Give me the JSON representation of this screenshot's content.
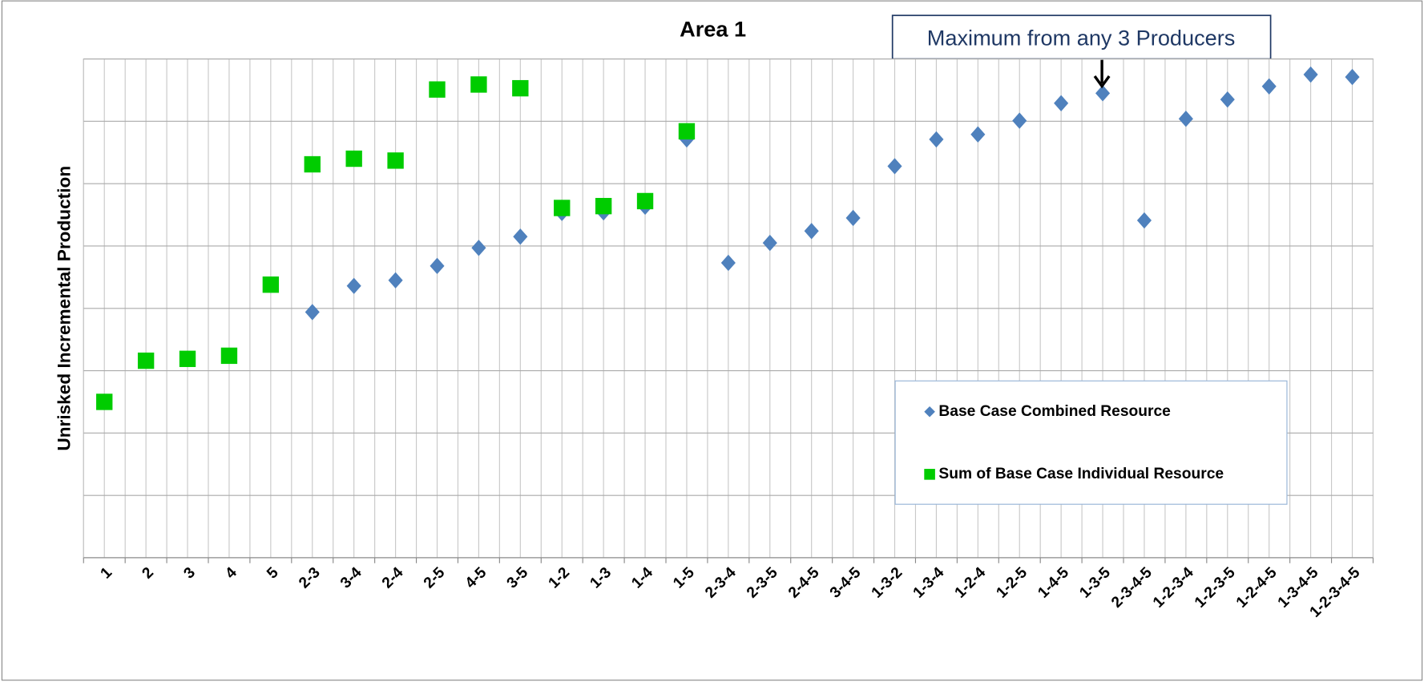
{
  "chart_data": {
    "type": "scatter",
    "title": "Area 1",
    "y_label": "Unrisked Incremental Production",
    "annotation": "Maximum from any 3 Producers",
    "categories": [
      "1",
      "2",
      "3",
      "4",
      "5",
      "2-3",
      "3-4",
      "2-4",
      "2-5",
      "4-5",
      "3-5",
      "1-2",
      "1-3",
      "1-4",
      "1-5",
      "2-3-4",
      "2-3-5",
      "2-4-5",
      "3-4-5",
      "1-3-2",
      "1-3-4",
      "1-2-4",
      "1-2-5",
      "1-4-5",
      "1-3-5",
      "2-3-4-5",
      "1-2-3-4",
      "1-2-3-5",
      "1-2-4-5",
      "1-3-4-5",
      "1-2-3-4-5"
    ],
    "series": [
      {
        "name": "Base Case Combined Resource",
        "color": "#4f81bd",
        "marker": "diamond",
        "values": [
          2.5,
          3.16,
          3.19,
          3.24,
          4.38,
          3.94,
          4.36,
          4.45,
          4.68,
          4.97,
          5.15,
          5.53,
          5.54,
          5.63,
          6.71,
          4.73,
          5.05,
          5.24,
          5.45,
          6.28,
          6.71,
          6.79,
          7.01,
          7.29,
          7.45,
          5.41,
          7.04,
          7.35,
          7.56,
          7.75,
          7.71
        ]
      },
      {
        "name": "Sum of Base Case Individual Resource",
        "color": "#00cc00",
        "marker": "square",
        "values": [
          2.5,
          3.16,
          3.19,
          3.24,
          4.38,
          6.31,
          6.4,
          6.37,
          7.51,
          7.59,
          7.53,
          5.61,
          5.64,
          5.72,
          6.84,
          null,
          null,
          null,
          null,
          null,
          null,
          null,
          null,
          null,
          null,
          null,
          null,
          null,
          null,
          null,
          null
        ]
      }
    ],
    "ylim": [
      0,
      8
    ],
    "yticks": [
      0,
      1,
      2,
      3,
      4,
      5,
      6,
      7,
      8
    ],
    "grid": true
  }
}
